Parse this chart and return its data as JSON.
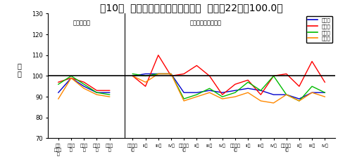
{
  "title": "第10図  特殊分類別出荷指数の推移  （平成22年＝100.0）",
  "ylabel_lines": [
    "指",
    "数"
  ],
  "ylim": [
    70,
    130
  ],
  "yticks": [
    70,
    80,
    90,
    100,
    110,
    120,
    130
  ],
  "annotation_left": "（原指数）",
  "annotation_right": "（季節調整済指数）",
  "legend_labels": [
    "鉱工業",
    "投資財",
    "消費財",
    "生産財"
  ],
  "legend_colors": [
    "#0000cc",
    "#ff0000",
    "#00bb00",
    "#ff8800"
  ],
  "hline_y": 100,
  "annual_x": [
    0,
    1,
    2,
    3,
    4
  ],
  "quarterly_x": [
    5.8,
    6.8,
    7.8,
    8.8,
    9.8,
    10.8,
    11.8,
    12.8,
    13.8,
    14.8,
    15.8,
    16.8,
    17.8,
    18.8,
    19.8,
    20.8
  ],
  "annual_tick_labels": [
    "平成\n二十一\n年",
    "二十二\n年",
    "二十三\n年",
    "二十四\n年",
    "二十五\n年"
  ],
  "quarterly_tick_labels": [
    "二十三年\nI期",
    "II期",
    "III期",
    "IV期",
    "二十三年\nI期",
    "II期",
    "III期",
    "IV期",
    "二十四年\nI期",
    "II期",
    "III期",
    "IV期",
    "二十五年\nI期",
    "II期",
    "III期",
    "IV期"
  ],
  "series": {
    "kk_annual": [
      92,
      99,
      95,
      92,
      92
    ],
    "investment_annual": [
      97,
      99,
      97,
      93,
      93
    ],
    "consumer_annual": [
      96,
      100,
      96,
      92,
      91
    ],
    "production_annual": [
      89,
      99,
      94,
      91,
      90
    ],
    "kk_quarterly": [
      100,
      101,
      101,
      101,
      92,
      92,
      93,
      92,
      93,
      94,
      93,
      91,
      91,
      89,
      92,
      92
    ],
    "investment_quarterly": [
      100,
      95,
      110,
      100,
      101,
      105,
      100,
      91,
      96,
      98,
      91,
      100,
      101,
      95,
      107,
      97
    ],
    "consumer_quarterly": [
      101,
      100,
      101,
      101,
      89,
      91,
      94,
      90,
      92,
      97,
      93,
      100,
      91,
      88,
      95,
      92
    ],
    "production_quarterly": [
      100,
      97,
      101,
      101,
      88,
      90,
      92,
      89,
      90,
      92,
      88,
      87,
      91,
      88,
      92,
      90
    ]
  }
}
